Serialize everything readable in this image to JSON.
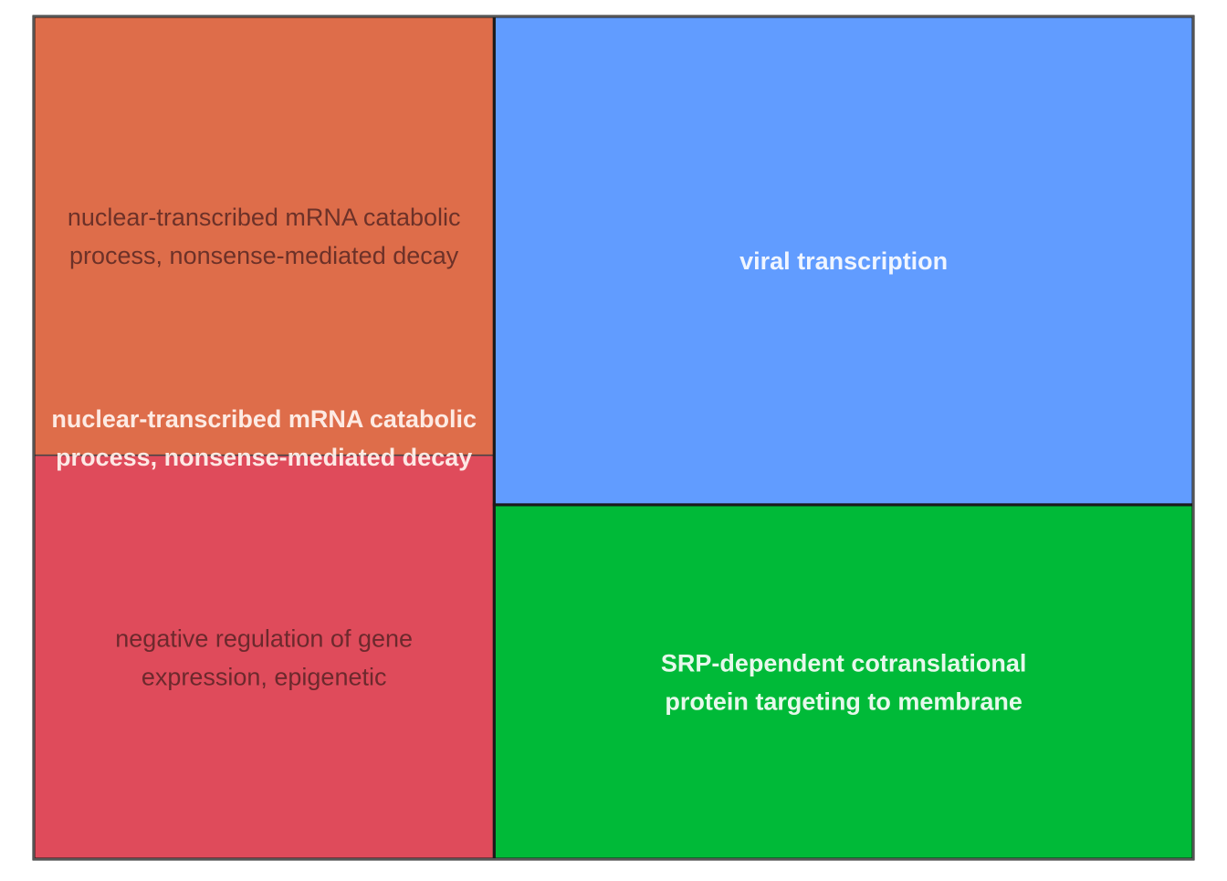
{
  "chart_data": {
    "type": "treemap",
    "groups": [
      {
        "label": "nuclear-transcribed mRNA catabolic process, nonsense-mediated decay",
        "label_lines": [
          "nuclear-transcribed mRNA catabolic",
          "process, nonsense-mediated decay"
        ],
        "color": "#e1565f",
        "children": [
          {
            "label": "nuclear-transcribed mRNA catabolic process, nonsense-mediated decay",
            "label_lines": [
              "nuclear-transcribed mRNA catabolic",
              "process, nonsense-mediated decay"
            ],
            "color": "#de6d4a",
            "value": 0.2068
          },
          {
            "label": "negative regulation of gene expression, epigenetic",
            "label_lines": [
              "negative regulation of gene",
              "expression, epigenetic"
            ],
            "color": "#df4b5b",
            "value": 0.1903
          }
        ]
      },
      {
        "label": "viral transcription",
        "label_lines": [
          "viral transcription"
        ],
        "color": "#619cff",
        "children": [
          {
            "label": "viral transcription",
            "label_lines": [
              "viral transcription"
            ],
            "color": "#619cff",
            "value": 0.3494
          }
        ]
      },
      {
        "label": "SRP-dependent cotranslational protein targeting to membrane",
        "label_lines": [
          "SRP-dependent cotranslational",
          "protein targeting to membrane"
        ],
        "color": "#00ba38",
        "children": [
          {
            "label": "SRP-dependent cotranslational protein targeting to membrane",
            "label_lines": [
              "SRP-dependent cotranslational",
              "protein targeting to membrane"
            ],
            "color": "#00ba38",
            "value": 0.2535
          }
        ]
      }
    ]
  }
}
